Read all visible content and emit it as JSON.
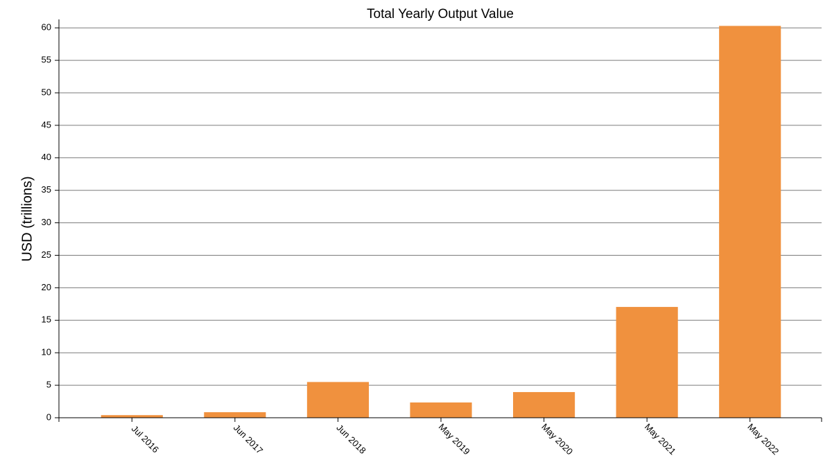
{
  "chart_data": {
    "type": "bar",
    "title": "Total Yearly Output Value",
    "y_label": "USD (trillions)",
    "categories": [
      "Jul 2016",
      "Jun 2017",
      "Jun 2018",
      "May 2019",
      "May 2020",
      "May 2021",
      "May 2022"
    ],
    "values": [
      0.4,
      0.85,
      5.5,
      2.35,
      3.95,
      17.05,
      60.3
    ],
    "color": "#f0913e",
    "ylim": [
      0,
      61.3
    ],
    "yticks": [
      0,
      5,
      10,
      15,
      20,
      25,
      30,
      35,
      40,
      45,
      50,
      55,
      60
    ],
    "grid": true
  }
}
